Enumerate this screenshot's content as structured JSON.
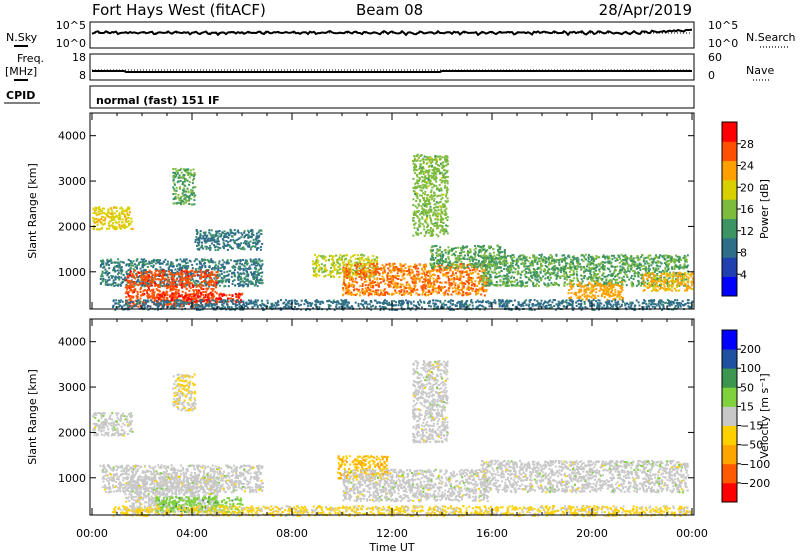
{
  "header": {
    "title": "Fort Hays West (fitACF)",
    "beam": "Beam 08",
    "date": "28/Apr/2019"
  },
  "aux_panels": {
    "nsky_label": "N.Sky",
    "nsearch_label": "N.Search",
    "noise_ticks": [
      "10^5",
      "10^0"
    ],
    "freq_label": "Freq.",
    "freq_unit": "[MHz]",
    "freq_ticks": [
      "18",
      "8"
    ],
    "nave_label": "Nave",
    "nave_ticks": [
      "60",
      "0"
    ],
    "cpid_label": "CPID",
    "cpid_text": "normal (fast) 151 IF"
  },
  "colors": {
    "power_scale": [
      "#0000ff",
      "#2040b0",
      "#2e6e88",
      "#3d9463",
      "#7dbb3d",
      "#d8d000",
      "#ffa000",
      "#ff5000",
      "#ff0000"
    ],
    "velocity_scale": [
      "#ff0000",
      "#ff5a00",
      "#ffa500",
      "#ffd000",
      "#c8c8c8",
      "#7fd23c",
      "#3c9650",
      "#2050a0",
      "#0000ff"
    ]
  },
  "chart_data": [
    {
      "type": "heatmap",
      "name": "power",
      "xlabel": "",
      "ylabel": "Slant Range [km]",
      "xlim": [
        0,
        24
      ],
      "ylim": [
        180,
        4500
      ],
      "yticks": [
        1000,
        2000,
        3000,
        4000
      ],
      "colorbar": {
        "label": "Power [dB]",
        "range": [
          0,
          32
        ],
        "tick_values": [
          4,
          8,
          12,
          16,
          20,
          24,
          28
        ],
        "ticks": [
          "4",
          "8",
          "12",
          "16",
          "20",
          "24",
          "28"
        ]
      },
      "regions": [
        {
          "t": [
            0.0,
            1.6
          ],
          "r": [
            1950,
            2450
          ],
          "value": 20
        },
        {
          "t": [
            0.3,
            6.8
          ],
          "r": [
            700,
            1300
          ],
          "value": 10
        },
        {
          "t": [
            1.3,
            5.0
          ],
          "r": [
            250,
            1050
          ],
          "value": 27
        },
        {
          "t": [
            2.5,
            6.0
          ],
          "r": [
            350,
            550
          ],
          "value": 29
        },
        {
          "t": [
            3.2,
            4.1
          ],
          "r": [
            2500,
            3300
          ],
          "value": 14
        },
        {
          "t": [
            4.1,
            6.8
          ],
          "r": [
            1500,
            1950
          ],
          "value": 10
        },
        {
          "t": [
            8.8,
            11.4
          ],
          "r": [
            900,
            1400
          ],
          "value": 18
        },
        {
          "t": [
            10.0,
            15.8
          ],
          "r": [
            500,
            1200
          ],
          "value": 25
        },
        {
          "t": [
            12.8,
            14.2
          ],
          "r": [
            1800,
            3600
          ],
          "value": 16
        },
        {
          "t": [
            13.5,
            16.5
          ],
          "r": [
            1100,
            1600
          ],
          "value": 14
        },
        {
          "t": [
            15.5,
            23.8
          ],
          "r": [
            700,
            1400
          ],
          "value": 14
        },
        {
          "t": [
            19.0,
            21.2
          ],
          "r": [
            400,
            800
          ],
          "value": 23
        },
        {
          "t": [
            22.0,
            24.0
          ],
          "r": [
            600,
            1000
          ],
          "value": 22
        },
        {
          "t": [
            0.8,
            24.0
          ],
          "r": [
            180,
            400
          ],
          "value": 9
        }
      ]
    },
    {
      "type": "heatmap",
      "name": "velocity",
      "xlabel": "Time UT",
      "ylabel": "Slant Range [km]",
      "xlim": [
        0,
        24
      ],
      "ylim": [
        180,
        4500
      ],
      "yticks": [
        1000,
        2000,
        3000,
        4000
      ],
      "xticks": [
        "00:00",
        "04:00",
        "08:00",
        "12:00",
        "16:00",
        "20:00",
        "00:00"
      ],
      "colorbar": {
        "label": "Velocity [m s⁻¹]",
        "range": [
          -250,
          250
        ],
        "ticks": [
          "-200",
          "-100",
          "-50",
          "-15",
          "15",
          "50",
          "100",
          "200"
        ]
      },
      "regions": [
        {
          "t": [
            0.0,
            1.6
          ],
          "r": [
            1950,
            2450
          ],
          "value": 0
        },
        {
          "t": [
            0.3,
            6.8
          ],
          "r": [
            700,
            1300
          ],
          "value": 0
        },
        {
          "t": [
            1.3,
            5.0
          ],
          "r": [
            250,
            1050
          ],
          "value": 0
        },
        {
          "t": [
            2.5,
            6.0
          ],
          "r": [
            250,
            600
          ],
          "value": 60
        },
        {
          "t": [
            3.2,
            4.1
          ],
          "r": [
            2500,
            3300
          ],
          "value": -30
        },
        {
          "t": [
            9.8,
            11.8
          ],
          "r": [
            1000,
            1500
          ],
          "value": -80
        },
        {
          "t": [
            10.0,
            15.8
          ],
          "r": [
            500,
            1200
          ],
          "value": 0
        },
        {
          "t": [
            12.8,
            14.2
          ],
          "r": [
            1800,
            3600
          ],
          "value": 0
        },
        {
          "t": [
            15.5,
            23.8
          ],
          "r": [
            700,
            1400
          ],
          "value": 0
        },
        {
          "t": [
            0.8,
            24.0
          ],
          "r": [
            180,
            400
          ],
          "value": -40
        }
      ]
    }
  ]
}
